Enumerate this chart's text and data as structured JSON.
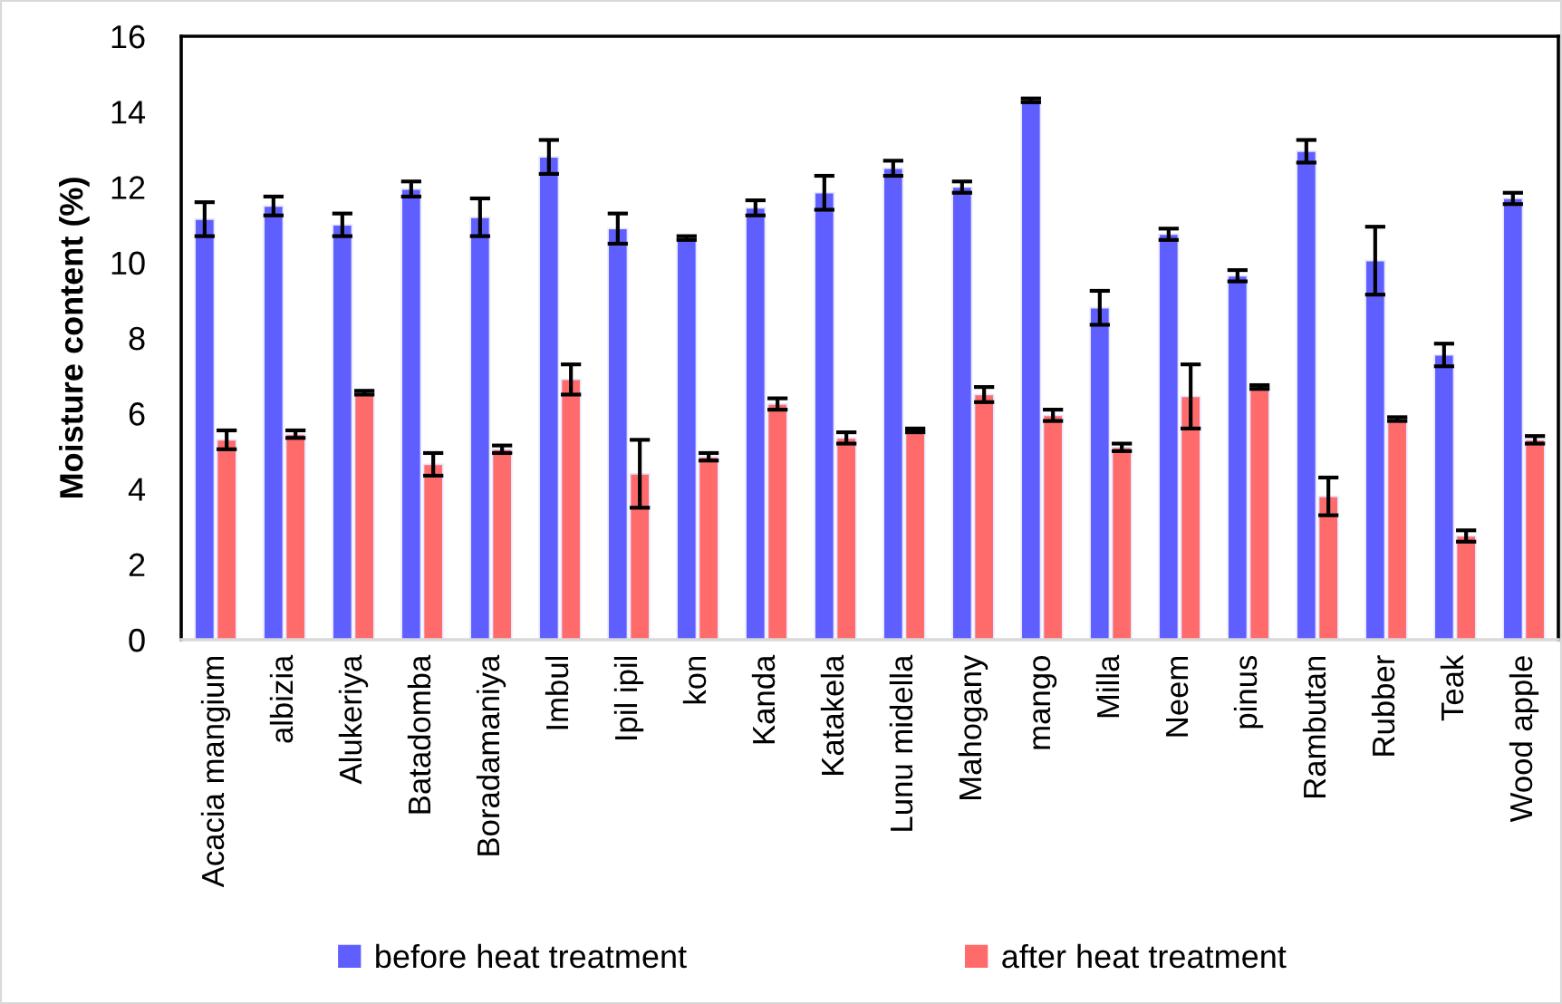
{
  "chart_data": {
    "type": "bar",
    "ylabel": "Moisture content (%)",
    "categories": [
      "Acacia mangium",
      "albizia",
      "Alukeriya",
      "Batadomba",
      "Boradamaniya",
      "Imbul",
      "Ipil ipil",
      "kon",
      "Kanda",
      "Katakela",
      "Lunu midella",
      "Mahogany",
      "mango",
      "Milla",
      "Neem",
      "pinus",
      "Rambutan",
      "Rubber",
      "Teak",
      "Wood apple"
    ],
    "series": [
      {
        "name": "before heat treatment",
        "color": "#5f5fff",
        "values": [
          11.15,
          11.5,
          11.0,
          11.95,
          11.2,
          12.8,
          10.9,
          10.65,
          11.45,
          11.85,
          12.5,
          12.0,
          14.3,
          8.8,
          10.75,
          9.65,
          12.95,
          10.05,
          7.55,
          11.7
        ],
        "errors": [
          0.45,
          0.25,
          0.3,
          0.2,
          0.5,
          0.45,
          0.4,
          0.05,
          0.2,
          0.45,
          0.2,
          0.15,
          0.05,
          0.45,
          0.15,
          0.15,
          0.3,
          0.9,
          0.3,
          0.15
        ]
      },
      {
        "name": "after heat treatment",
        "color": "#ff6b6b",
        "values": [
          5.3,
          5.45,
          6.55,
          4.65,
          5.05,
          6.9,
          4.4,
          4.85,
          6.25,
          5.35,
          5.55,
          6.5,
          5.95,
          5.1,
          6.45,
          6.7,
          3.8,
          5.85,
          2.75,
          5.3
        ],
        "errors": [
          0.25,
          0.1,
          0.05,
          0.3,
          0.1,
          0.4,
          0.9,
          0.1,
          0.15,
          0.15,
          0.05,
          0.2,
          0.15,
          0.1,
          0.85,
          0.05,
          0.5,
          0.05,
          0.15,
          0.1
        ]
      }
    ],
    "ylim": [
      0,
      16
    ],
    "yticks": [
      0,
      2,
      4,
      6,
      8,
      10,
      12,
      14,
      16
    ],
    "legend": "bottom"
  }
}
